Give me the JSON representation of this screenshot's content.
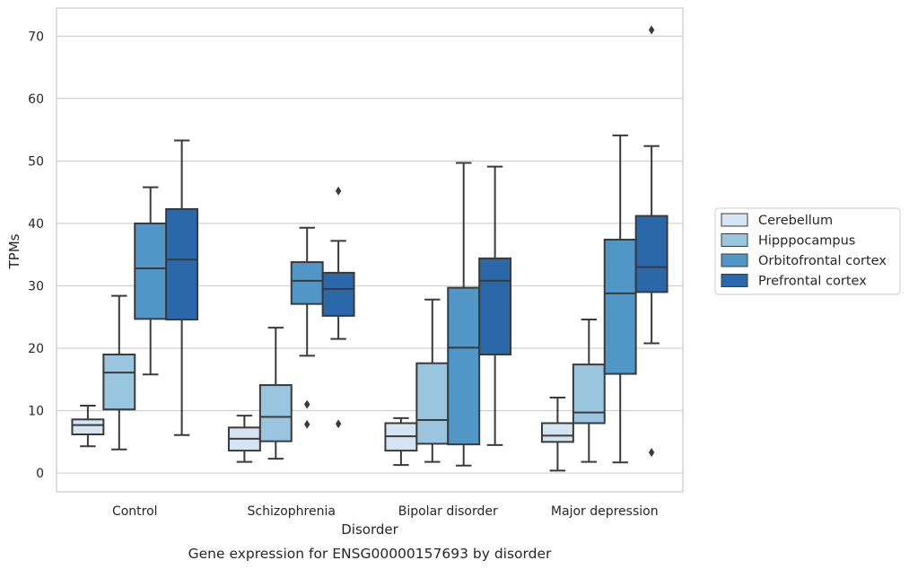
{
  "chart_data": {
    "type": "box",
    "xlabel": "Disorder",
    "ylabel": "TPMs",
    "caption": "Gene expression for ENSG00000157693 by disorder",
    "ylim": [
      -3,
      74.5
    ],
    "yticks": [
      "0",
      "10",
      "20",
      "30",
      "40",
      "50",
      "60",
      "70"
    ],
    "grid": "horizontal",
    "legend_position": "right",
    "categories": [
      "Control",
      "Schizophrenia",
      "Bipolar disorder",
      "Major depression"
    ],
    "series": [
      {
        "name": "Cerebellum",
        "color": "#d4e4f2",
        "boxes": [
          {
            "whisker_low": 4.3,
            "q1": 6.2,
            "median": 7.7,
            "q3": 8.6,
            "whisker_high": 10.8,
            "outliers": []
          },
          {
            "whisker_low": 1.8,
            "q1": 3.6,
            "median": 5.5,
            "q3": 7.3,
            "whisker_high": 9.2,
            "outliers": []
          },
          {
            "whisker_low": 1.3,
            "q1": 3.6,
            "median": 5.9,
            "q3": 8.0,
            "whisker_high": 8.8,
            "outliers": []
          },
          {
            "whisker_low": 0.4,
            "q1": 5.0,
            "median": 6.0,
            "q3": 8.0,
            "whisker_high": 12.1,
            "outliers": []
          }
        ]
      },
      {
        "name": "Hipppocampus",
        "color": "#9ac5df",
        "boxes": [
          {
            "whisker_low": 3.8,
            "q1": 10.2,
            "median": 16.1,
            "q3": 19.0,
            "whisker_high": 28.4,
            "outliers": []
          },
          {
            "whisker_low": 2.3,
            "q1": 5.1,
            "median": 9.0,
            "q3": 14.1,
            "whisker_high": 23.3,
            "outliers": []
          },
          {
            "whisker_low": 1.8,
            "q1": 4.7,
            "median": 8.5,
            "q3": 17.6,
            "whisker_high": 27.8,
            "outliers": []
          },
          {
            "whisker_low": 1.8,
            "q1": 8.0,
            "median": 9.7,
            "q3": 17.4,
            "whisker_high": 24.6,
            "outliers": []
          }
        ]
      },
      {
        "name": "Orbitofrontal cortex",
        "color": "#5097c8",
        "boxes": [
          {
            "whisker_low": 15.8,
            "q1": 24.7,
            "median": 32.8,
            "q3": 40.0,
            "whisker_high": 45.8,
            "outliers": []
          },
          {
            "whisker_low": 18.8,
            "q1": 27.1,
            "median": 30.8,
            "q3": 33.8,
            "whisker_high": 39.3,
            "outliers": [
              7.8,
              11.0
            ]
          },
          {
            "whisker_low": 1.2,
            "q1": 4.6,
            "median": 20.1,
            "q3": 29.7,
            "whisker_high": 49.7,
            "outliers": []
          },
          {
            "whisker_low": 1.7,
            "q1": 15.9,
            "median": 28.8,
            "q3": 37.4,
            "whisker_high": 54.1,
            "outliers": []
          }
        ]
      },
      {
        "name": "Prefrontal cortex",
        "color": "#2a68aa",
        "boxes": [
          {
            "whisker_low": 6.1,
            "q1": 24.6,
            "median": 34.2,
            "q3": 42.3,
            "whisker_high": 53.3,
            "outliers": []
          },
          {
            "whisker_low": 21.5,
            "q1": 25.2,
            "median": 29.5,
            "q3": 32.1,
            "whisker_high": 37.2,
            "outliers": [
              45.2,
              7.9
            ]
          },
          {
            "whisker_low": 4.5,
            "q1": 19.0,
            "median": 30.8,
            "q3": 34.4,
            "whisker_high": 49.1,
            "outliers": []
          },
          {
            "whisker_low": 20.8,
            "q1": 29.0,
            "median": 33.0,
            "q3": 41.2,
            "whisker_high": 52.4,
            "outliers": [
              71.0,
              3.3
            ]
          }
        ]
      }
    ]
  }
}
